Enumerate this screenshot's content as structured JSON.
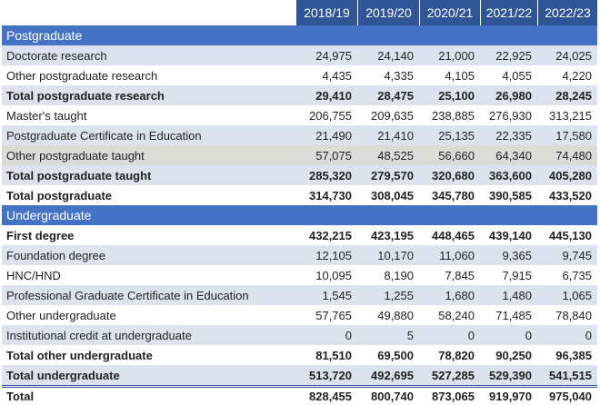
{
  "header": {
    "columns": [
      "2018/19",
      "2019/20",
      "2020/21",
      "2021/22",
      "2022/23"
    ]
  },
  "sections": [
    {
      "title": "Postgraduate",
      "rows": [
        {
          "label": "Doctorate research",
          "values": [
            "24,975",
            "24,140",
            "21,000",
            "22,925",
            "24,025"
          ]
        },
        {
          "label": "Other postgraduate research",
          "values": [
            "4,435",
            "4,335",
            "4,105",
            "4,055",
            "4,220"
          ]
        },
        {
          "label": "Total postgraduate research",
          "values": [
            "29,410",
            "28,475",
            "25,100",
            "26,980",
            "28,245"
          ],
          "bold": true
        },
        {
          "label": "Master's taught",
          "values": [
            "206,755",
            "209,635",
            "238,885",
            "276,930",
            "313,215"
          ]
        },
        {
          "label": "Postgraduate Certificate in Education",
          "values": [
            "21,490",
            "21,410",
            "25,135",
            "22,335",
            "17,580"
          ]
        },
        {
          "label": "Other postgraduate taught",
          "values": [
            "57,075",
            "48,525",
            "56,660",
            "64,340",
            "74,480"
          ],
          "highlighted": true
        },
        {
          "label": "Total postgraduate taught",
          "values": [
            "285,320",
            "279,570",
            "320,680",
            "363,600",
            "405,280"
          ],
          "bold": true
        },
        {
          "label": "Total postgraduate",
          "values": [
            "314,730",
            "308,045",
            "345,780",
            "390,585",
            "433,520"
          ],
          "bold": true
        }
      ]
    },
    {
      "title": "Undergraduate",
      "rows": [
        {
          "label": "First degree",
          "values": [
            "432,215",
            "423,195",
            "448,465",
            "439,140",
            "445,130"
          ],
          "bold": true
        },
        {
          "label": "Foundation degree",
          "values": [
            "12,105",
            "10,170",
            "11,060",
            "9,365",
            "9,745"
          ]
        },
        {
          "label": "HNC/HND",
          "values": [
            "10,095",
            "8,190",
            "7,845",
            "7,915",
            "6,735"
          ]
        },
        {
          "label": "Professional Graduate Certificate in Education",
          "values": [
            "1,545",
            "1,255",
            "1,680",
            "1,480",
            "1,065"
          ]
        },
        {
          "label": "Other undergraduate",
          "values": [
            "57,765",
            "49,880",
            "58,240",
            "71,485",
            "78,840"
          ]
        },
        {
          "label": "Institutional credit at undergraduate",
          "values": [
            "0",
            "5",
            "0",
            "0",
            "0"
          ]
        },
        {
          "label": "Total other undergraduate",
          "values": [
            "81,510",
            "69,500",
            "78,820",
            "90,250",
            "96,385"
          ],
          "bold": true
        },
        {
          "label": "Total undergraduate",
          "values": [
            "513,720",
            "492,695",
            "527,285",
            "529,390",
            "541,515"
          ],
          "bold": true
        }
      ]
    }
  ],
  "total": {
    "label": "Total",
    "values": [
      "828,455",
      "800,740",
      "873,065",
      "919,970",
      "975,040"
    ],
    "bold": true
  }
}
